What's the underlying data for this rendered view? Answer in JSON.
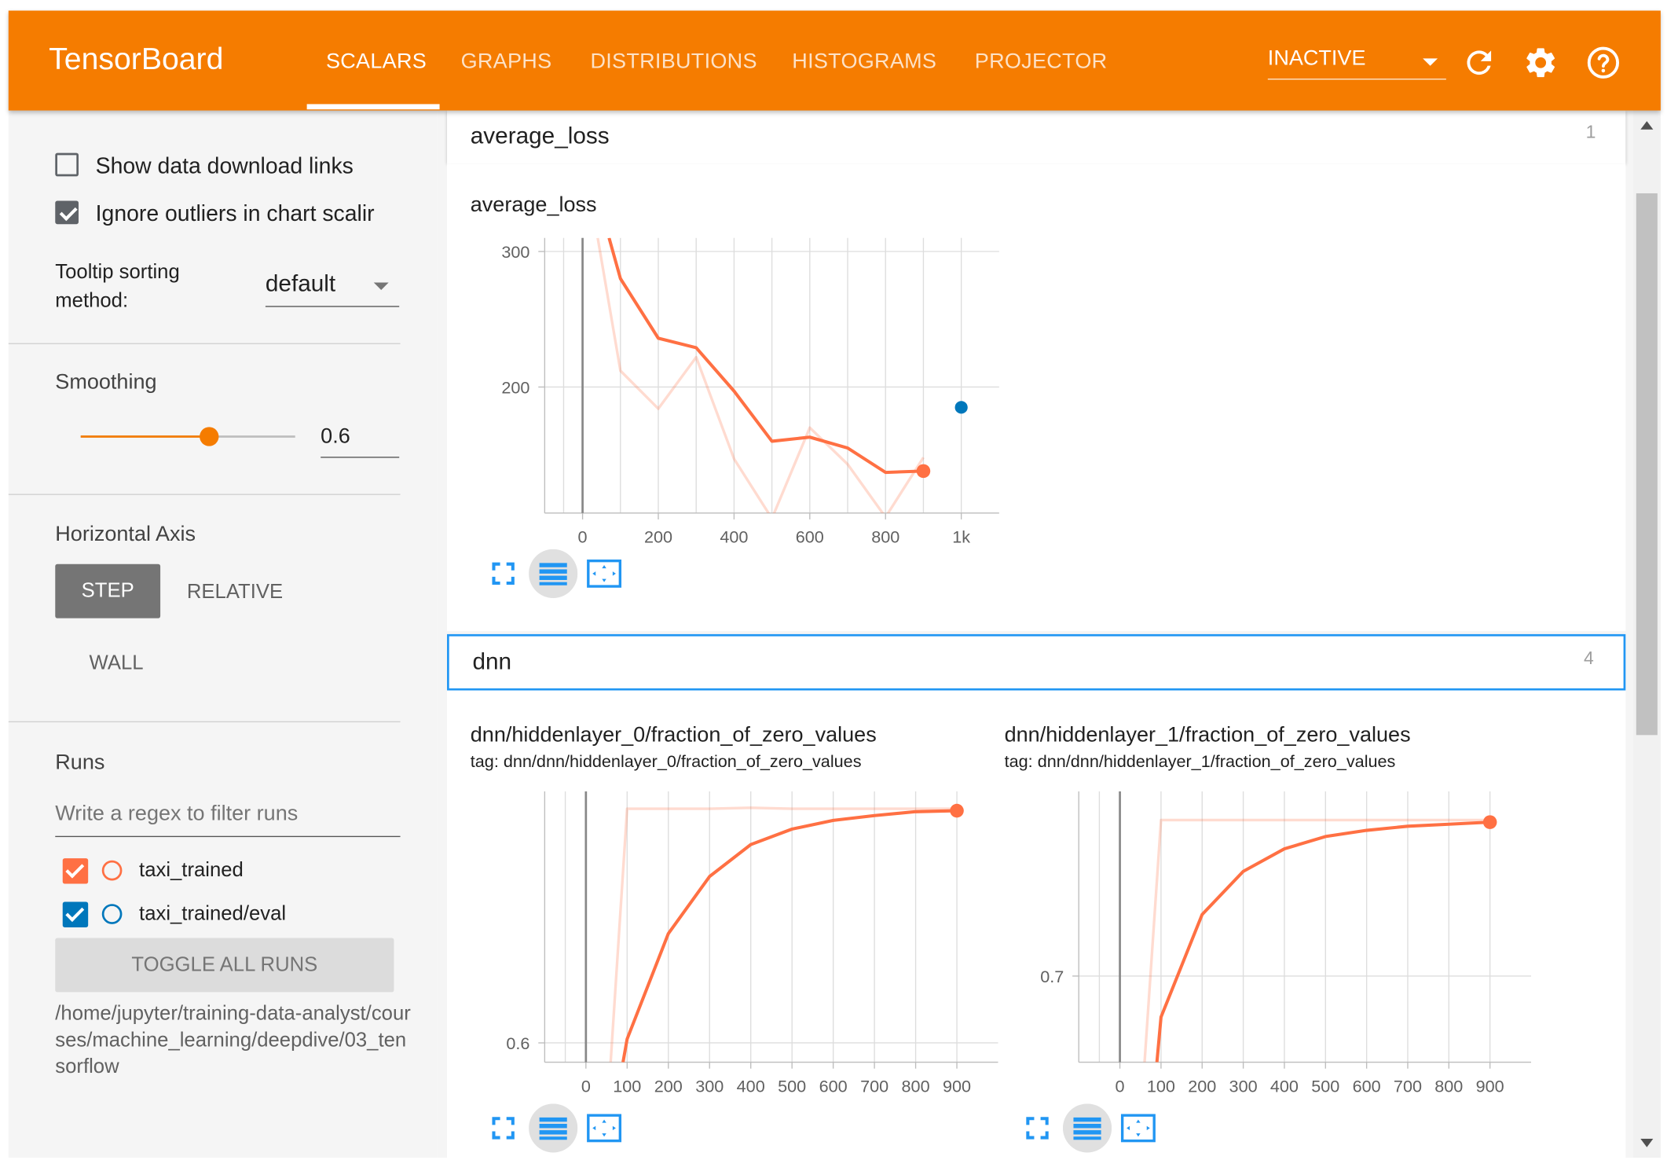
{
  "header": {
    "brand": "TensorBoard",
    "tabs": [
      {
        "label": "SCALARS",
        "active": true
      },
      {
        "label": "GRAPHS",
        "active": false
      },
      {
        "label": "DISTRIBUTIONS",
        "active": false
      },
      {
        "label": "HISTOGRAMS",
        "active": false
      },
      {
        "label": "PROJECTOR",
        "active": false
      }
    ],
    "run_select": "INACTIVE",
    "accent": "#f57c00"
  },
  "sidebar": {
    "show_download_links": {
      "label": "Show data download links",
      "checked": false
    },
    "ignore_outliers": {
      "label": "Ignore outliers in chart scalir",
      "checked": true
    },
    "tooltip_sorting": {
      "label": "Tooltip sorting method:",
      "value": "default"
    },
    "smoothing": {
      "label": "Smoothing",
      "value": "0.6",
      "fraction": 0.6
    },
    "horizontal_axis": {
      "label": "Horizontal Axis",
      "options": [
        "STEP",
        "RELATIVE",
        "WALL"
      ],
      "selected": "STEP"
    },
    "runs": {
      "label": "Runs",
      "filter_placeholder": "Write a regex to filter runs",
      "items": [
        {
          "name": "taxi_trained",
          "color": "#ff7043",
          "checked": true
        },
        {
          "name": "taxi_trained/eval",
          "color": "#0077bb",
          "checked": true
        }
      ],
      "toggle_all": "TOGGLE ALL RUNS"
    },
    "logdir": "/home/jupyter/training-data-analyst/courses/machine_learning/deepdive/03_tensorflow"
  },
  "categories": [
    {
      "name": "average_loss",
      "count": "1"
    },
    {
      "name": "dnn",
      "count": "4"
    }
  ],
  "charts": [
    {
      "title": "average_loss",
      "subtitle": ""
    },
    {
      "title": "dnn/hiddenlayer_0/fraction_of_zero_values",
      "subtitle": "tag: dnn/dnn/hiddenlayer_0/fraction_of_zero_values"
    },
    {
      "title": "dnn/hiddenlayer_1/fraction_of_zero_values",
      "subtitle": "tag: dnn/dnn/hiddenlayer_1/fraction_of_zero_values"
    }
  ],
  "chart_data": [
    {
      "type": "line",
      "title": "average_loss",
      "x_ticks": [
        "0",
        "200",
        "400",
        "600",
        "800",
        "1k"
      ],
      "y_ticks": [
        "200",
        "300"
      ],
      "xlim": [
        -100,
        1100
      ],
      "ylim": [
        107,
        310
      ],
      "series": [
        {
          "name": "taxi_trained",
          "color": "#ff7043",
          "opacity": 0.25,
          "x": [
            40,
            100,
            200,
            300,
            400,
            500,
            600,
            700,
            800,
            900
          ],
          "y": [
            310,
            212,
            184,
            222,
            147,
            103,
            170,
            143,
            104,
            148
          ]
        },
        {
          "name": "taxi_trained",
          "color": "#ff7043",
          "opacity": 1,
          "x": [
            70,
            100,
            200,
            300,
            400,
            500,
            600,
            700,
            800,
            900
          ],
          "y": [
            310,
            280,
            236,
            229,
            197,
            160,
            163,
            155,
            137,
            138
          ]
        },
        {
          "name": "taxi_trained/eval",
          "color": "#0077bb",
          "point": true,
          "x": [
            1000
          ],
          "y": [
            185
          ]
        }
      ]
    },
    {
      "type": "line",
      "title": "dnn/hiddenlayer_0/fraction_of_zero_values",
      "x_ticks": [
        "0",
        "100",
        "200",
        "300",
        "400",
        "500",
        "600",
        "700",
        "800",
        "900"
      ],
      "y_ticks": [
        "0.6"
      ],
      "xlim": [
        -100,
        1000
      ],
      "ylim": [
        0.58,
        0.86
      ],
      "series": [
        {
          "name": "taxi_trained",
          "color": "#ff7043",
          "opacity": 0.25,
          "x": [
            60,
            100,
            200,
            300,
            400,
            500,
            600,
            700,
            800,
            900
          ],
          "y": [
            0.58,
            0.842,
            0.842,
            0.842,
            0.843,
            0.842,
            0.842,
            0.842,
            0.842,
            0.842
          ]
        },
        {
          "name": "taxi_trained",
          "color": "#ff7043",
          "opacity": 1,
          "x": [
            90,
            100,
            200,
            300,
            400,
            500,
            600,
            700,
            800,
            900
          ],
          "y": [
            0.58,
            0.604,
            0.713,
            0.772,
            0.805,
            0.821,
            0.83,
            0.835,
            0.839,
            0.84
          ]
        }
      ]
    },
    {
      "type": "line",
      "title": "dnn/hiddenlayer_1/fraction_of_zero_values",
      "x_ticks": [
        "0",
        "100",
        "200",
        "300",
        "400",
        "500",
        "600",
        "700",
        "800",
        "900"
      ],
      "y_ticks": [
        "0.7"
      ],
      "xlim": [
        -100,
        1000
      ],
      "ylim": [
        0.658,
        0.79
      ],
      "series": [
        {
          "name": "taxi_trained",
          "color": "#ff7043",
          "opacity": 0.25,
          "x": [
            60,
            100,
            200,
            300,
            400,
            500,
            600,
            700,
            800,
            900
          ],
          "y": [
            0.658,
            0.776,
            0.776,
            0.776,
            0.776,
            0.776,
            0.776,
            0.776,
            0.776,
            0.776
          ]
        },
        {
          "name": "taxi_trained",
          "color": "#ff7043",
          "opacity": 1,
          "x": [
            90,
            100,
            200,
            300,
            400,
            500,
            600,
            700,
            800,
            900
          ],
          "y": [
            0.658,
            0.68,
            0.73,
            0.751,
            0.762,
            0.768,
            0.771,
            0.773,
            0.774,
            0.775
          ]
        }
      ]
    }
  ]
}
